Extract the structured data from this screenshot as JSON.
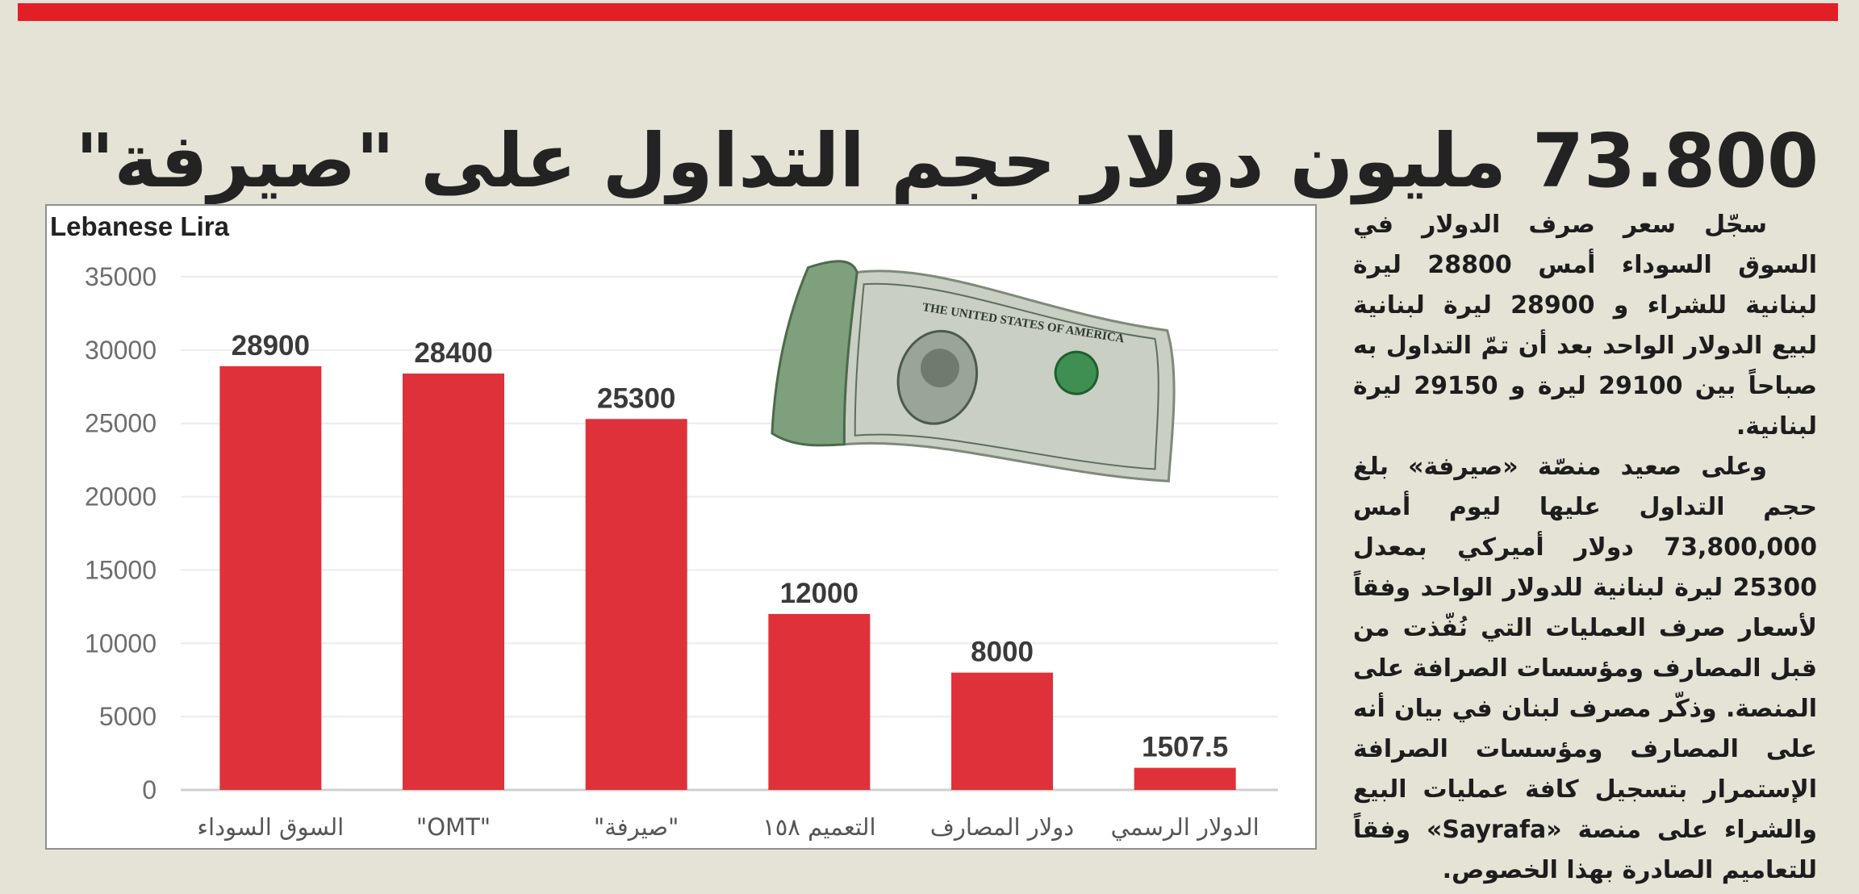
{
  "headline": "73.800 مليون دولار حجم التداول على \"صيرفة\"",
  "colors": {
    "bar": "#df3139",
    "accent_bar": "#e21f26",
    "background": "#e5e3d6"
  },
  "photo": {
    "icon": "us-dollar-bill-icon",
    "bill_text": "THE UNITED STATES OF AMERICA"
  },
  "chart_data": {
    "type": "bar",
    "ylabel": "Lebanese Lira",
    "ylim": [
      0,
      35000
    ],
    "yticks": [
      0,
      5000,
      10000,
      15000,
      20000,
      25000,
      30000,
      35000
    ],
    "grid": true,
    "categories": [
      "السوق السوداء",
      "\"OMT\"",
      "\"صيرفة\"",
      "التعميم ١٥٨",
      "دولار المصارف",
      "الدولار الرسمي"
    ],
    "values": [
      28900,
      28400,
      25300,
      12000,
      8000,
      1507.5
    ],
    "data_labels": [
      "28900",
      "28400",
      "25300",
      "12000",
      "8000",
      "1507.5"
    ]
  },
  "article": {
    "paragraphs": [
      "سجّل سعر صرف الدولار في السوق السوداء أمس 28800 ليرة لبنانية للشراء و 28900 ليرة لبنانية لبيع الدولار الواحد بعد أن تمّ التداول به صباحاً بين 29100 ليرة و 29150 ليرة لبنانية.",
      "وعلى صعيد منصّة «صيرفة» بلغ حجم التداول عليها ليوم أمس 73,800,000 دولار أميركي بمعدل 25300 ليرة لبنانية للدولار الواحد وفقاً لأسعار صرف العمليات التي نُفّذت من قبل المصارف ومؤسسات الصرافة على المنصة. وذكّر مصرف لبنان في بيان أنه على المصارف ومؤسسات الصرافة الإستمرار بتسجيل كافة عمليات البيع والشراء على منصة «Sayrafa» وفقاً للتعاميم الصادرة بهذا الخصوص."
    ]
  }
}
